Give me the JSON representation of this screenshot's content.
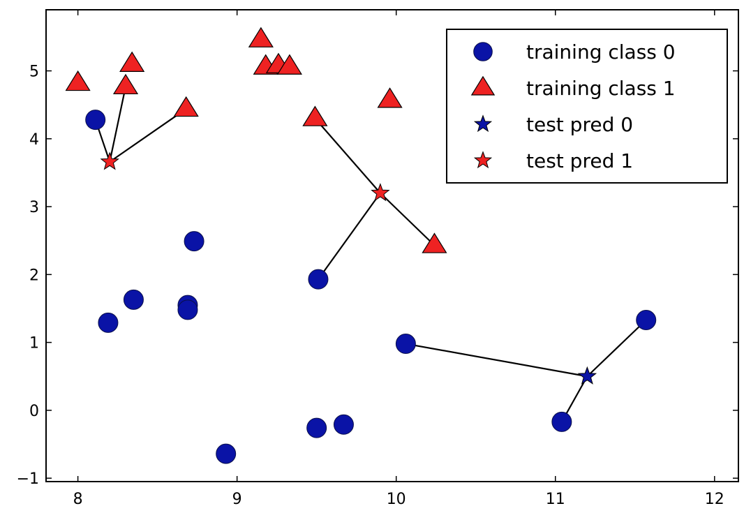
{
  "chart_data": {
    "type": "scatter",
    "title": "",
    "xlabel": "",
    "ylabel": "",
    "xlim": [
      7.8,
      12.15
    ],
    "ylim": [
      -1.05,
      5.9
    ],
    "xticks": [
      8,
      9,
      10,
      11,
      12
    ],
    "yticks": [
      -1,
      0,
      1,
      2,
      3,
      4,
      5
    ],
    "xtick_labels": [
      "8",
      "9",
      "10",
      "11",
      "12"
    ],
    "ytick_labels": [
      "−1",
      "0",
      "1",
      "2",
      "3",
      "4",
      "5"
    ],
    "grid": false,
    "legend_position": "top-right",
    "series": [
      {
        "name": "training class 0",
        "marker": "circle",
        "color": "#0a13a6",
        "points": [
          [
            8.11,
            4.28
          ],
          [
            8.19,
            1.29
          ],
          [
            8.35,
            1.63
          ],
          [
            8.69,
            1.55
          ],
          [
            8.69,
            1.48
          ],
          [
            8.73,
            2.49
          ],
          [
            8.93,
            -0.64
          ],
          [
            9.5,
            -0.26
          ],
          [
            9.51,
            1.93
          ],
          [
            9.67,
            -0.21
          ],
          [
            10.06,
            0.98
          ],
          [
            11.04,
            -0.17
          ],
          [
            11.57,
            1.33
          ]
        ]
      },
      {
        "name": "training class 1",
        "marker": "triangle",
        "color": "#ee2222",
        "points": [
          [
            8.0,
            4.82
          ],
          [
            8.3,
            4.77
          ],
          [
            8.34,
            5.1
          ],
          [
            8.68,
            4.44
          ],
          [
            9.15,
            5.46
          ],
          [
            9.18,
            5.06
          ],
          [
            9.26,
            5.08
          ],
          [
            9.33,
            5.06
          ],
          [
            9.49,
            4.3
          ],
          [
            9.96,
            4.57
          ],
          [
            10.24,
            2.43
          ]
        ]
      },
      {
        "name": "test pred 0",
        "marker": "star",
        "color": "#0a13a6",
        "points": [
          [
            11.2,
            0.5
          ]
        ]
      },
      {
        "name": "test pred 1",
        "marker": "star",
        "color": "#ee2222",
        "points": [
          [
            8.2,
            3.66
          ],
          [
            9.9,
            3.2
          ]
        ]
      }
    ],
    "neighbor_lines": [
      [
        [
          8.2,
          3.66
        ],
        [
          8.11,
          4.28
        ]
      ],
      [
        [
          8.2,
          3.66
        ],
        [
          8.3,
          4.77
        ]
      ],
      [
        [
          8.2,
          3.66
        ],
        [
          8.68,
          4.44
        ]
      ],
      [
        [
          9.9,
          3.2
        ],
        [
          9.49,
          4.3
        ]
      ],
      [
        [
          9.9,
          3.2
        ],
        [
          9.51,
          1.93
        ]
      ],
      [
        [
          9.9,
          3.2
        ],
        [
          10.24,
          2.43
        ]
      ],
      [
        [
          11.2,
          0.5
        ],
        [
          10.06,
          0.98
        ]
      ],
      [
        [
          11.2,
          0.5
        ],
        [
          11.04,
          -0.17
        ]
      ],
      [
        [
          11.2,
          0.5
        ],
        [
          11.57,
          1.33
        ]
      ]
    ]
  }
}
